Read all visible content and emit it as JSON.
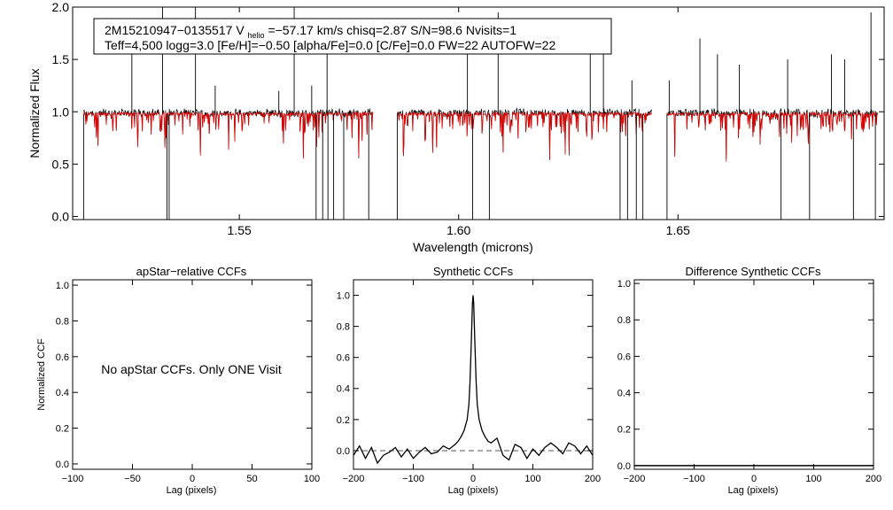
{
  "figure": {
    "header_line1": {
      "star_id": "2M15210947−0135517",
      "vhelio_prefix": "V",
      "vhelio_sub": "helio",
      "vhelio_value": "=−57.17 km/s",
      "chisq": "chisq=2.87",
      "snr": "S/N=98.6",
      "nvisits": "Nvisits=1"
    },
    "header_line2": "Teff=4,500 logg=3.0 [Fe/H]=−0.50 [alpha/Fe]=0.0 [C/Fe]=0.0 FW=22 AUTOFW=22",
    "no_ccf_message": "No apStar CCFs.  Only ONE Visit"
  },
  "chart_data": [
    {
      "id": "spectrum",
      "type": "line",
      "xlabel": "Wavelength (microns)",
      "ylabel": "Normalized Flux",
      "xlim": [
        1.512,
        1.697
      ],
      "ylim": [
        -0.03,
        2.0
      ],
      "xticks": [
        {
          "value": 1.55,
          "label": "1.55"
        },
        {
          "value": 1.6,
          "label": "1.60"
        },
        {
          "value": 1.65,
          "label": "1.65"
        }
      ],
      "yticks": [
        {
          "value": 0.0,
          "label": "0.0"
        },
        {
          "value": 0.5,
          "label": "0.5"
        },
        {
          "value": 1.0,
          "label": "1.0"
        },
        {
          "value": 1.5,
          "label": "1.5"
        },
        {
          "value": 2.0,
          "label": "2.0"
        }
      ],
      "chip_ranges": [
        [
          1.5145,
          1.5805
        ],
        [
          1.586,
          1.644
        ],
        [
          1.6475,
          1.6955
        ]
      ],
      "continuum": 0.98,
      "series": [
        {
          "name": "observed",
          "color": "#000000"
        },
        {
          "name": "model",
          "color": "#e00000"
        }
      ],
      "emission_spikes": [
        1.5255,
        1.5325,
        1.54,
        1.5445,
        1.559,
        1.5625,
        1.5665,
        1.57,
        1.602,
        1.609,
        1.63,
        1.633,
        1.6395,
        1.648,
        1.655,
        1.659,
        1.664,
        1.675,
        1.685,
        1.688,
        1.694
      ],
      "spike_heights": [
        1.75,
        2.0,
        2.0,
        1.25,
        1.2,
        2.0,
        1.25,
        1.6,
        1.6,
        1.95,
        1.65,
        1.75,
        1.3,
        1.3,
        1.7,
        1.55,
        1.45,
        1.5,
        1.55,
        1.5,
        1.95
      ],
      "bad_pixel_drops": [
        1.5145,
        1.5335,
        1.534,
        1.5675,
        1.569,
        1.5702,
        1.5715,
        1.5738,
        1.5795,
        1.586,
        1.6032,
        1.607,
        1.6368,
        1.6385,
        1.6405,
        1.642,
        1.6475,
        1.6735,
        1.68,
        1.69,
        1.695
      ]
    },
    {
      "id": "apstar-ccf",
      "type": "line",
      "title": "apStar−relative CCFs",
      "xlabel": "Lag (pixels)",
      "ylabel": "Normalized CCF",
      "xlim": [
        -100,
        100
      ],
      "ylim": [
        -0.03,
        1.03
      ],
      "xticks": [
        {
          "value": -100,
          "label": "−100"
        },
        {
          "value": -50,
          "label": "−50"
        },
        {
          "value": 0,
          "label": "0"
        },
        {
          "value": 50,
          "label": "50"
        },
        {
          "value": 100,
          "label": "100"
        }
      ],
      "yticks": [
        {
          "value": 0.0,
          "label": "0.0"
        },
        {
          "value": 0.2,
          "label": "0.2"
        },
        {
          "value": 0.4,
          "label": "0.4"
        },
        {
          "value": 0.6,
          "label": "0.6"
        },
        {
          "value": 0.8,
          "label": "0.8"
        },
        {
          "value": 1.0,
          "label": "1.0"
        }
      ],
      "series": []
    },
    {
      "id": "synthetic-ccf",
      "type": "line",
      "title": "Synthetic CCFs",
      "xlabel": "Lag (pixels)",
      "xlim": [
        -200,
        200
      ],
      "ylim": [
        -0.12,
        1.1
      ],
      "xticks": [
        {
          "value": -200,
          "label": "−200"
        },
        {
          "value": -100,
          "label": "−100"
        },
        {
          "value": 0,
          "label": "0"
        },
        {
          "value": 100,
          "label": "100"
        },
        {
          "value": 200,
          "label": "200"
        }
      ],
      "yticks": [
        {
          "value": 0.0,
          "label": "0.0"
        },
        {
          "value": 0.2,
          "label": "0.2"
        },
        {
          "value": 0.4,
          "label": "0.4"
        },
        {
          "value": 0.6,
          "label": "0.6"
        },
        {
          "value": 0.8,
          "label": "0.8"
        },
        {
          "value": 1.0,
          "label": "1.0"
        }
      ],
      "zero_line": 0.0,
      "series": [
        {
          "name": "ccf",
          "x": [
            -200,
            -190,
            -180,
            -170,
            -160,
            -150,
            -140,
            -130,
            -120,
            -110,
            -100,
            -90,
            -80,
            -70,
            -60,
            -50,
            -40,
            -30,
            -25,
            -20,
            -15,
            -10,
            -7,
            -5,
            -3,
            -1,
            0,
            1,
            3,
            5,
            7,
            10,
            15,
            20,
            25,
            30,
            40,
            50,
            60,
            70,
            80,
            90,
            100,
            110,
            120,
            130,
            140,
            150,
            160,
            170,
            180,
            190,
            200
          ],
          "y": [
            -0.03,
            0.03,
            -0.05,
            0.02,
            -0.08,
            -0.03,
            -0.01,
            0.02,
            -0.04,
            0.01,
            -0.05,
            -0.01,
            0.02,
            -0.02,
            -0.01,
            0.03,
            0.01,
            0.04,
            0.06,
            0.09,
            0.13,
            0.2,
            0.3,
            0.45,
            0.7,
            0.95,
            1.0,
            0.95,
            0.7,
            0.45,
            0.3,
            0.2,
            0.13,
            0.09,
            0.06,
            0.05,
            0.08,
            -0.03,
            -0.06,
            0.04,
            0.02,
            -0.05,
            0.01,
            -0.03,
            0.02,
            0.05,
            0.02,
            -0.02,
            0.05,
            0.03,
            -0.02,
            0.03,
            -0.03
          ]
        }
      ]
    },
    {
      "id": "difference-ccf",
      "type": "line",
      "title": "Difference Synthetic CCFs",
      "xlabel": "Lag (pixels)",
      "xlim": [
        -200,
        200
      ],
      "ylim": [
        -0.02,
        1.02
      ],
      "xticks": [
        {
          "value": -200,
          "label": "−200"
        },
        {
          "value": -100,
          "label": "−100"
        },
        {
          "value": 0,
          "label": "0"
        },
        {
          "value": 100,
          "label": "100"
        },
        {
          "value": 200,
          "label": "200"
        }
      ],
      "yticks": [
        {
          "value": 0.0,
          "label": "0.0"
        },
        {
          "value": 0.2,
          "label": "0.2"
        },
        {
          "value": 0.4,
          "label": "0.4"
        },
        {
          "value": 0.6,
          "label": "0.6"
        },
        {
          "value": 0.8,
          "label": "0.8"
        },
        {
          "value": 1.0,
          "label": "1.0"
        }
      ],
      "baseline": 0.0,
      "series": []
    }
  ]
}
